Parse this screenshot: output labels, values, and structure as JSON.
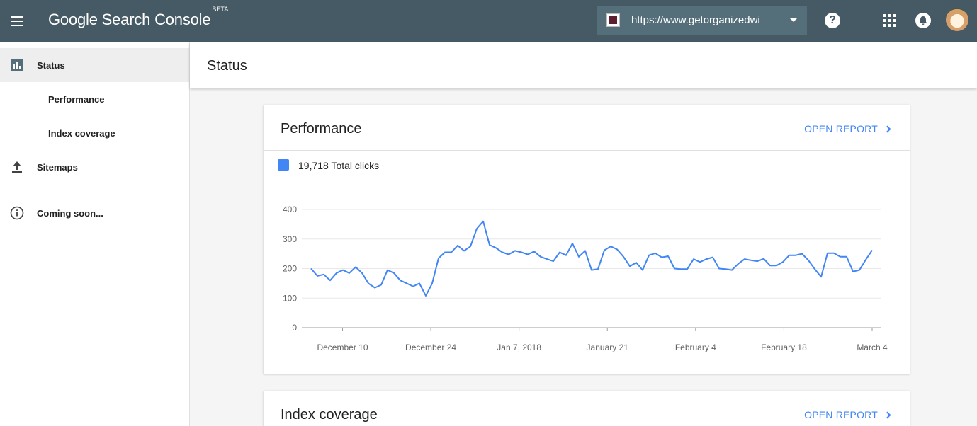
{
  "app": {
    "title": "Google Search Console",
    "badge": "BETA",
    "property_url": "https://www.getorganizedwi",
    "help_label": "?"
  },
  "sidebar": {
    "items": [
      {
        "label": "Status",
        "icon": "bar-chart-icon"
      },
      {
        "label": "Performance"
      },
      {
        "label": "Index coverage"
      },
      {
        "label": "Sitemaps",
        "icon": "upload-icon"
      },
      {
        "label": "Coming soon...",
        "icon": "info-icon"
      }
    ]
  },
  "page": {
    "title": "Status"
  },
  "performance_card": {
    "title": "Performance",
    "open_report": "OPEN REPORT",
    "legend": "19,718 Total clicks"
  },
  "index_card": {
    "title": "Index coverage",
    "open_report": "OPEN REPORT"
  },
  "colors": {
    "topbar": "#455a64",
    "accent": "#4285f4",
    "active_nav": "#eeeeee"
  },
  "chart_data": {
    "type": "line",
    "title": "",
    "xlabel": "",
    "ylabel": "",
    "ylim": [
      0,
      400
    ],
    "yticks": [
      0,
      100,
      200,
      300,
      400
    ],
    "grid": true,
    "x_tick_labels": [
      "December 10",
      "December 24",
      "Jan 7, 2018",
      "January 21",
      "February 4",
      "February 18",
      "March 4"
    ],
    "x_start": "2017-12-05",
    "x_end": "2018-03-04",
    "series": [
      {
        "name": "Total clicks",
        "color": "#4285f4",
        "values": [
          200,
          175,
          180,
          160,
          185,
          195,
          185,
          205,
          185,
          150,
          135,
          145,
          195,
          185,
          160,
          150,
          140,
          150,
          108,
          150,
          235,
          255,
          255,
          278,
          260,
          275,
          335,
          360,
          280,
          270,
          255,
          248,
          260,
          255,
          248,
          258,
          240,
          232,
          225,
          255,
          245,
          285,
          240,
          260,
          195,
          198,
          262,
          275,
          265,
          240,
          208,
          220,
          195,
          245,
          252,
          238,
          242,
          200,
          198,
          198,
          232,
          222,
          232,
          238,
          200,
          198,
          195,
          216,
          232,
          228,
          225,
          233,
          210,
          210,
          222,
          245,
          245,
          250,
          228,
          198,
          172,
          252,
          252,
          240,
          240,
          190,
          195,
          230,
          262
        ]
      }
    ]
  }
}
